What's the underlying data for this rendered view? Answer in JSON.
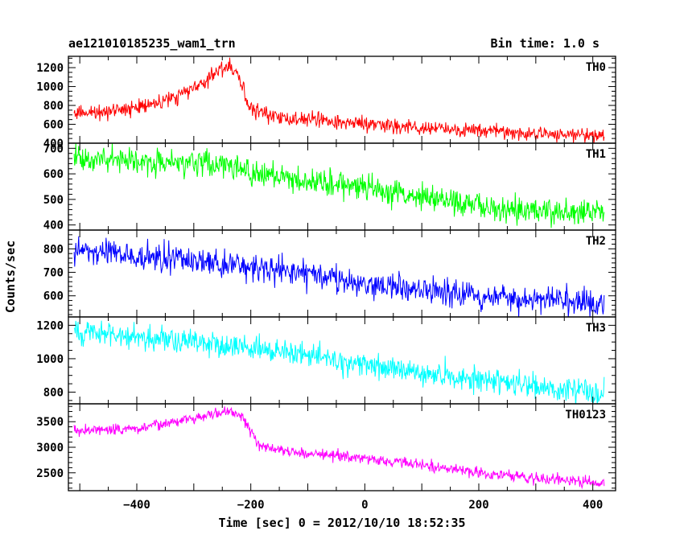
{
  "chart_data": {
    "type": "line",
    "title": "ae121010185235_wam1_trn",
    "bin_time_label": "Bin time: 1.0 s",
    "xlabel": "Time [sec] 0 = 2012/10/10 18:52:35",
    "ylabel": "Counts/sec",
    "xlim": [
      -520,
      440
    ],
    "x_ticks": [
      -400,
      -200,
      0,
      200,
      400
    ],
    "x_range": [
      -510,
      420
    ],
    "grid": false,
    "panels": [
      {
        "name": "TH0",
        "color": "#ff0000",
        "ylim": [
          400,
          1320
        ],
        "yticks": [
          400,
          600,
          800,
          1000,
          1200
        ],
        "noise": 42,
        "keypoints": [
          [
            -510,
            720
          ],
          [
            -470,
            730
          ],
          [
            -420,
            760
          ],
          [
            -380,
            810
          ],
          [
            -340,
            880
          ],
          [
            -300,
            980
          ],
          [
            -270,
            1100
          ],
          [
            -255,
            1170
          ],
          [
            -240,
            1210
          ],
          [
            -225,
            1180
          ],
          [
            -215,
            1000
          ],
          [
            -205,
            810
          ],
          [
            -190,
            740
          ],
          [
            -150,
            680
          ],
          [
            -100,
            650
          ],
          [
            -40,
            620
          ],
          [
            0,
            600
          ],
          [
            100,
            560
          ],
          [
            200,
            530
          ],
          [
            300,
            500
          ],
          [
            420,
            480
          ]
        ]
      },
      {
        "name": "TH1",
        "color": "#00ff00",
        "ylim": [
          380,
          720
        ],
        "yticks": [
          400,
          500,
          600,
          700
        ],
        "noise": 26,
        "keypoints": [
          [
            -510,
            660
          ],
          [
            -400,
            650
          ],
          [
            -300,
            640
          ],
          [
            -230,
            635
          ],
          [
            -200,
            605
          ],
          [
            -100,
            575
          ],
          [
            0,
            540
          ],
          [
            100,
            510
          ],
          [
            200,
            480
          ],
          [
            300,
            460
          ],
          [
            420,
            445
          ]
        ]
      },
      {
        "name": "TH2",
        "color": "#0000ff",
        "ylim": [
          510,
          880
        ],
        "yticks": [
          600,
          700,
          800
        ],
        "noise": 30,
        "keypoints": [
          [
            -510,
            790
          ],
          [
            -400,
            770
          ],
          [
            -300,
            750
          ],
          [
            -200,
            720
          ],
          [
            -100,
            690
          ],
          [
            0,
            650
          ],
          [
            100,
            620
          ],
          [
            200,
            600
          ],
          [
            300,
            580
          ],
          [
            420,
            575
          ]
        ]
      },
      {
        "name": "TH3",
        "color": "#00ffff",
        "ylim": [
          730,
          1250
        ],
        "yticks": [
          800,
          1000,
          1200
        ],
        "noise": 38,
        "keypoints": [
          [
            -510,
            1160
          ],
          [
            -400,
            1130
          ],
          [
            -300,
            1100
          ],
          [
            -200,
            1060
          ],
          [
            -100,
            1020
          ],
          [
            0,
            960
          ],
          [
            100,
            910
          ],
          [
            200,
            870
          ],
          [
            300,
            830
          ],
          [
            420,
            800
          ]
        ]
      },
      {
        "name": "TH0123",
        "color": "#ff00ff",
        "ylim": [
          2150,
          3850
        ],
        "yticks": [
          2500,
          3000,
          3500
        ],
        "noise": 55,
        "keypoints": [
          [
            -510,
            3330
          ],
          [
            -450,
            3340
          ],
          [
            -400,
            3370
          ],
          [
            -350,
            3450
          ],
          [
            -300,
            3560
          ],
          [
            -270,
            3640
          ],
          [
            -250,
            3700
          ],
          [
            -230,
            3700
          ],
          [
            -215,
            3600
          ],
          [
            -200,
            3300
          ],
          [
            -185,
            3050
          ],
          [
            -150,
            2950
          ],
          [
            -100,
            2880
          ],
          [
            0,
            2780
          ],
          [
            100,
            2650
          ],
          [
            200,
            2500
          ],
          [
            300,
            2400
          ],
          [
            420,
            2290
          ]
        ]
      }
    ]
  }
}
